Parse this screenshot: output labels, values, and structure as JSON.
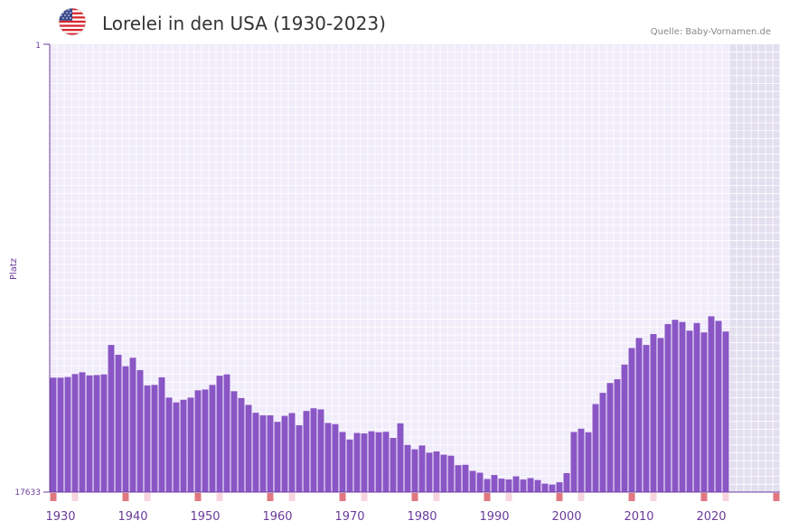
{
  "header": {
    "title": "Lorelei in den USA (1930-2023)",
    "source": "Quelle: Baby-Vornamen.de",
    "flag_icon": "us-flag-icon"
  },
  "colors": {
    "bar": "#8a56c6",
    "axis": "#6a3b9a",
    "grid_bg": "#f1ecfa",
    "grid_line": "#ffffff",
    "future_bg": "#e3dfee",
    "marker_strong": "#e07880",
    "marker_light": "#f7d4de"
  },
  "chart_data": {
    "type": "bar",
    "title": "Lorelei in den USA (1930-2023)",
    "ylabel": "Platz",
    "xlabel": "",
    "y_scale": "rank (inverted, log)",
    "ylim": [
      1,
      17633
    ],
    "y_tick_labels": [
      "1",
      "17633"
    ],
    "x_range": [
      1929,
      2029
    ],
    "x_tick_labels": [
      "1930",
      "1940",
      "1950",
      "1960",
      "1970",
      "1980",
      "1990",
      "2000",
      "2010",
      "2020"
    ],
    "categories": [
      1929,
      1930,
      1931,
      1932,
      1933,
      1934,
      1935,
      1936,
      1937,
      1938,
      1939,
      1940,
      1941,
      1942,
      1943,
      1944,
      1945,
      1946,
      1947,
      1948,
      1949,
      1950,
      1951,
      1952,
      1953,
      1954,
      1955,
      1956,
      1957,
      1958,
      1959,
      1960,
      1961,
      1962,
      1963,
      1964,
      1965,
      1966,
      1967,
      1968,
      1969,
      1970,
      1971,
      1972,
      1973,
      1974,
      1975,
      1976,
      1977,
      1978,
      1979,
      1980,
      1981,
      1982,
      1983,
      1984,
      1985,
      1986,
      1987,
      1988,
      1989,
      1990,
      1991,
      1992,
      1993,
      1994,
      1995,
      1996,
      1997,
      1998,
      1999,
      2000,
      2001,
      2002,
      2003,
      2004,
      2005,
      2006,
      2007,
      2008,
      2009,
      2010,
      2011,
      2012,
      2013,
      2014,
      2015,
      2016,
      2017,
      2018,
      2019,
      2020,
      2021,
      2022
    ],
    "values": [
      1450,
      1450,
      1430,
      1340,
      1290,
      1380,
      1370,
      1350,
      710,
      880,
      1130,
      940,
      1230,
      1720,
      1700,
      1440,
      2240,
      2490,
      2350,
      2240,
      1910,
      1880,
      1700,
      1390,
      1350,
      1950,
      2260,
      2630,
      3120,
      3300,
      3300,
      3800,
      3340,
      3140,
      4100,
      3000,
      2830,
      2900,
      3900,
      4000,
      4750,
      5600,
      4850,
      4900,
      4680,
      4780,
      4730,
      5400,
      3930,
      6300,
      6930,
      6370,
      7450,
      7260,
      7800,
      7970,
      9800,
      9720,
      11100,
      11550,
      13250,
      12150,
      13150,
      13380,
      12500,
      13400,
      13000,
      13550,
      14670,
      14940,
      14230,
      11650,
      4750,
      4420,
      4780,
      2580,
      2020,
      1630,
      1500,
      1090,
      760,
      610,
      710,
      560,
      610,
      450,
      410,
      430,
      520,
      440,
      540,
      380,
      420,
      530
    ],
    "year_markers": {
      "strong": [
        1929,
        1939,
        1949,
        1959,
        1969,
        1979,
        1989,
        1999,
        2009,
        2019,
        2029
      ],
      "light": [
        1932,
        1942,
        1952,
        1962,
        1972,
        1982,
        1992,
        2002,
        2012,
        2022
      ]
    }
  }
}
